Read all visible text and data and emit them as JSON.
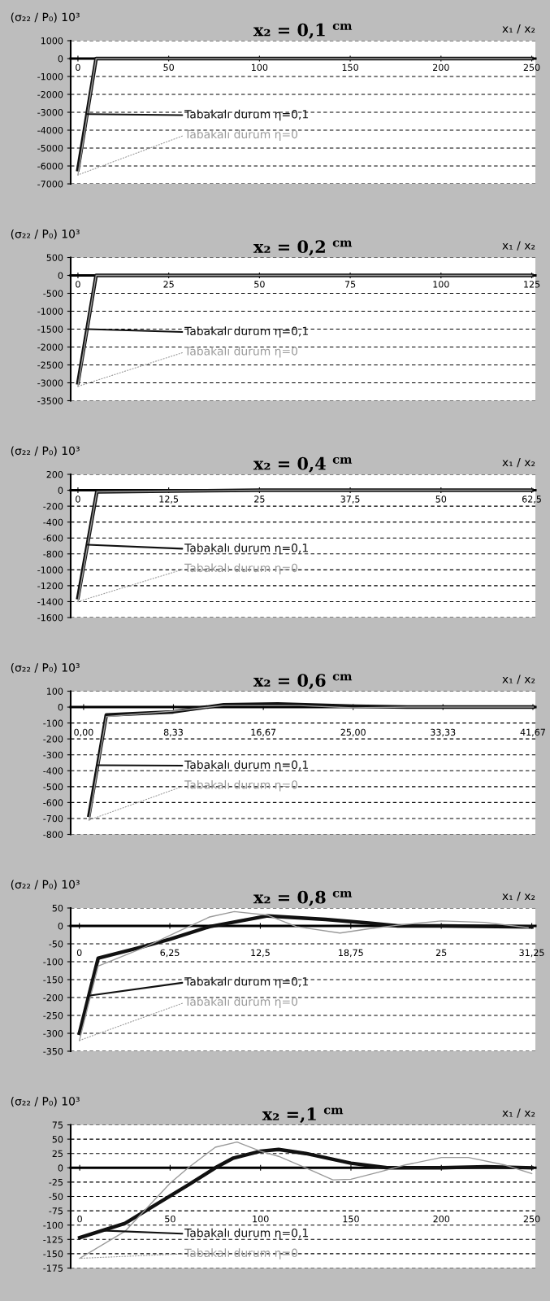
{
  "chart_data": [
    {
      "type": "line",
      "title": "x₂ = 0,1 $^{cm}$",
      "ylabel": "(σ₂₂ / P₀) 10³",
      "xlabel": "x₁ / x₂",
      "xlim": [
        -4,
        252
      ],
      "xticks": [
        0,
        50,
        100,
        150,
        200,
        250
      ],
      "ylim": [
        -7000,
        1000
      ],
      "yticks": [
        1000,
        0,
        -1000,
        -2000,
        -3000,
        -4000,
        -5000,
        -6000,
        -7000
      ],
      "grid": "y",
      "series": [
        {
          "name": "Tabakalı durum η=0,1",
          "color": "#111111",
          "x": [
            0,
            10,
            50,
            100,
            150,
            200,
            250
          ],
          "values": [
            -6200,
            0,
            0,
            0,
            0,
            0,
            0
          ]
        },
        {
          "name": "Tabakalı durum η=0",
          "color": "#9a9a9a",
          "x": [
            0,
            10,
            50,
            100,
            150,
            200,
            250
          ],
          "values": [
            -6500,
            0,
            0,
            0,
            0,
            0,
            0
          ]
        }
      ]
    },
    {
      "type": "line",
      "title": "x₂ = 0,2 $^{cm}$",
      "ylabel": "(σ₂₂ / P₀) 10³",
      "xlabel": "x₁ / x₂",
      "xlim": [
        -2,
        126
      ],
      "xticks": [
        0,
        25,
        50,
        75,
        100,
        125
      ],
      "ylim": [
        -3500,
        500
      ],
      "yticks": [
        500,
        0,
        -500,
        -1000,
        -1500,
        -2000,
        -2500,
        -3000,
        -3500
      ],
      "grid": "y",
      "series": [
        {
          "name": "Tabakalı durum η=0,1",
          "color": "#111111",
          "x": [
            0,
            5,
            25,
            50,
            75,
            100,
            125
          ],
          "values": [
            -3000,
            0,
            0,
            0,
            0,
            0,
            0
          ]
        },
        {
          "name": "Tabakalı durum η=0",
          "color": "#9a9a9a",
          "x": [
            0,
            5,
            25,
            50,
            75,
            100,
            125
          ],
          "values": [
            -3100,
            0,
            0,
            0,
            0,
            0,
            0
          ]
        }
      ]
    },
    {
      "type": "line",
      "title": "x₂ = 0,4 $^{cm}$",
      "ylabel": "(σ₂₂ / P₀) 10³",
      "xlabel": "x₁ / x₂",
      "xlim": [
        -1,
        63
      ],
      "xticks": [
        0,
        {
          "value": 12.5,
          "label": "12,5"
        },
        25,
        {
          "value": 37.5,
          "label": "37,5"
        },
        50,
        {
          "value": 62.5,
          "label": "62,5"
        }
      ],
      "ylim": [
        -1600,
        200
      ],
      "yticks": [
        200,
        0,
        -200,
        -400,
        -600,
        -800,
        -1000,
        -1200,
        -1400,
        -1600
      ],
      "grid": "y",
      "series": [
        {
          "name": "Tabakalı durum η=0,1",
          "color": "#111111",
          "x": [
            0,
            2.6,
            12.5,
            25,
            37.5,
            50,
            62.5
          ],
          "values": [
            -1350,
            -20,
            -10,
            0,
            0,
            0,
            0
          ]
        },
        {
          "name": "Tabakalı durum η=0",
          "color": "#9a9a9a",
          "x": [
            0,
            2.6,
            12.5,
            25,
            37.5,
            50,
            62.5
          ],
          "values": [
            -1400,
            -20,
            -10,
            0,
            0,
            0,
            0
          ]
        }
      ]
    },
    {
      "type": "line",
      "title": "x₂ = 0,6 $^{cm}$",
      "ylabel": "(σ₂₂ / P₀) 10³",
      "xlabel": "x₁ / x₂",
      "xlim": [
        -1.2,
        41.9
      ],
      "xticks": [
        {
          "value": 0,
          "label": "0,00"
        },
        {
          "value": 8.33,
          "label": "8,33"
        },
        {
          "value": 16.67,
          "label": "16,67"
        },
        {
          "value": 25,
          "label": "25,00"
        },
        {
          "value": 33.33,
          "label": "33,33"
        },
        {
          "value": 41.67,
          "label": "41,67"
        }
      ],
      "ylim": [
        -800,
        100
      ],
      "yticks": [
        100,
        0,
        -100,
        -200,
        -300,
        -400,
        -500,
        -600,
        -700,
        -800
      ],
      "grid": "y",
      "series": [
        {
          "name": "Tabakalı durum η=0,1",
          "color": "#111111",
          "x": [
            0.5,
            2.1,
            8.3,
            13,
            18,
            25,
            30,
            41.7
          ],
          "values": [
            -680,
            -50,
            -30,
            15,
            20,
            5,
            0,
            0
          ]
        },
        {
          "name": "Tabakalı durum η=0",
          "color": "#9a9a9a",
          "x": [
            0.5,
            2.1,
            8.3,
            13,
            20,
            25,
            30,
            41.7
          ],
          "values": [
            -710,
            -60,
            -25,
            10,
            10,
            -5,
            0,
            0
          ]
        }
      ]
    },
    {
      "type": "line",
      "title": "x₂ = 0,8 $^{cm}$",
      "ylabel": "(σ₂₂ / P₀) 10³",
      "xlabel": "x₁ / x₂",
      "xlim": [
        -0.6,
        31.5
      ],
      "xticks": [
        0,
        {
          "value": 6.25,
          "label": "6,25"
        },
        {
          "value": 12.5,
          "label": "12,5"
        },
        {
          "value": 18.75,
          "label": "18,75"
        },
        25,
        {
          "value": 31.25,
          "label": "31,25"
        }
      ],
      "ylim": [
        -350,
        50
      ],
      "yticks": [
        50,
        0,
        -50,
        -100,
        -150,
        -200,
        -250,
        -300,
        -350
      ],
      "grid": "y",
      "series": [
        {
          "name": "Tabakalı durum η=0,1",
          "color": "#111111",
          "x": [
            0,
            1.3,
            4,
            6.25,
            9,
            13,
            17,
            20,
            22,
            25,
            31.25
          ],
          "values": [
            -300,
            -90,
            -62,
            -37,
            -2,
            28,
            18,
            8,
            0,
            0,
            -3
          ]
        },
        {
          "name": "Tabakalı durum η=0",
          "color": "#9a9a9a",
          "x": [
            0,
            1.3,
            4.5,
            7,
            9,
            10.7,
            13,
            15,
            18,
            20,
            22,
            25,
            28,
            31
          ],
          "values": [
            -320,
            -112,
            -60,
            -12,
            25,
            40,
            30,
            -2,
            -20,
            -8,
            2,
            14,
            10,
            -5
          ]
        }
      ]
    },
    {
      "type": "line",
      "title": "x₂ =,1 $^{cm}$",
      "ylabel": "(σ₂₂ / P₀) 10³",
      "xlabel": "x₁ / x₂",
      "xlim": [
        -5,
        252
      ],
      "xticks": [
        0,
        50,
        100,
        150,
        200,
        250
      ],
      "ylim": [
        -175,
        75
      ],
      "yticks": [
        75,
        50,
        25,
        0,
        -25,
        -50,
        -75,
        -100,
        -125,
        -150,
        -175
      ],
      "grid": "y",
      "series": [
        {
          "name": "Tabakalı durum η=0,1",
          "color": "#111111",
          "x": [
            0,
            25,
            50,
            60,
            75,
            85,
            100,
            110,
            125,
            150,
            170,
            200,
            225,
            250
          ],
          "values": [
            -122,
            -97,
            -49,
            -30,
            0,
            17,
            29,
            32,
            25,
            8,
            0,
            0,
            2,
            0
          ]
        },
        {
          "name": "Tabakalı durum η=0",
          "color": "#9a9a9a",
          "x": [
            0,
            25,
            50,
            60,
            75,
            87,
            100,
            110,
            125,
            140,
            150,
            165,
            180,
            200,
            215,
            235,
            250
          ],
          "values": [
            -158,
            -111,
            -27,
            0,
            36,
            45,
            29,
            20,
            0,
            -21,
            -20,
            -8,
            5,
            18,
            18,
            5,
            -10
          ]
        }
      ]
    }
  ]
}
